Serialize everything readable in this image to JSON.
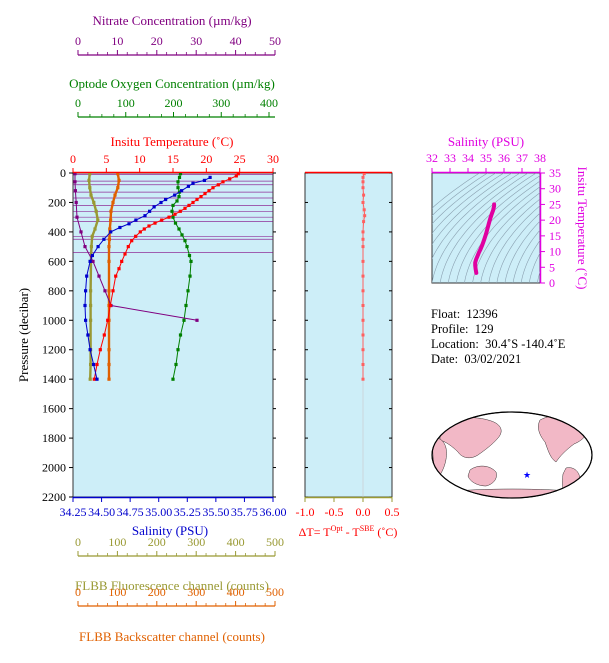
{
  "colors": {
    "nitrate": "#800080",
    "oxygen": "#008000",
    "temperature": "#ff0000",
    "salinity": "#0000cc",
    "fluorescence": "#999933",
    "backscatter": "#e06000",
    "ts_curve": "#e000a0",
    "magenta": "#e000e0",
    "delta": "#ff6060",
    "panel_bg": "#cdeef8",
    "land": "#f2b8c6"
  },
  "axes": {
    "nitrate": {
      "title": "Nitrate Concentration (µm/kg)",
      "ticks": [
        "0",
        "10",
        "20",
        "30",
        "40",
        "50"
      ],
      "range": [
        0,
        50
      ]
    },
    "oxygen": {
      "title": "Optode Oxygen Concentration (µm/kg)",
      "ticks": [
        "0",
        "100",
        "200",
        "300",
        "400"
      ],
      "range": [
        0,
        400
      ]
    },
    "temperature": {
      "title": "Insitu Temperature (˚C)",
      "ticks": [
        "0",
        "5",
        "10",
        "15",
        "20",
        "25",
        "30"
      ],
      "range": [
        0,
        30
      ]
    },
    "pressure": {
      "title": "Pressure (decibar)",
      "ticks": [
        "0",
        "200",
        "400",
        "600",
        "800",
        "1000",
        "1200",
        "1400",
        "1600",
        "1800",
        "2000",
        "2200"
      ],
      "range": [
        0,
        2200
      ]
    },
    "salinity": {
      "title": "Salinity (PSU)",
      "ticks": [
        "34.25",
        "34.50",
        "34.75",
        "35.00",
        "35.25",
        "35.50",
        "35.75",
        "36.00"
      ],
      "range": [
        34.25,
        36.0
      ]
    },
    "delta": {
      "title_prefix": "ΔT= T",
      "title_sup1": "Opt",
      "title_mid": " - T",
      "title_sup2": "SBE",
      "title_suffix": " (˚C)",
      "ticks": [
        "-1.0",
        "-0.5",
        "0.0",
        "0.5"
      ],
      "range": [
        -1.0,
        0.5
      ]
    },
    "fluorescence": {
      "title": "FLBB Fluorescence channel (counts)",
      "ticks": [
        "0",
        "100",
        "200",
        "300",
        "400",
        "500"
      ],
      "range": [
        0,
        500
      ]
    },
    "backscatter": {
      "title": "FLBB Backscatter channel (counts)",
      "ticks": [
        "0",
        "100",
        "200",
        "300",
        "400",
        "500"
      ],
      "range": [
        0,
        500
      ]
    },
    "ts_salinity": {
      "title": "Salinity (PSU)",
      "ticks": [
        "32",
        "33",
        "34",
        "35",
        "36",
        "37",
        "38"
      ],
      "range": [
        32,
        38
      ]
    },
    "ts_temperature": {
      "title": "Insitu Temperature (˚C)",
      "ticks": [
        "0",
        "5",
        "10",
        "15",
        "20",
        "25",
        "30",
        "35"
      ],
      "range": [
        0,
        35
      ]
    }
  },
  "info": {
    "float_label": "Float:",
    "float_value": "12396",
    "profile_label": "Profile:",
    "profile_value": "129",
    "location_label": "Location:",
    "location_value": "30.4˚S  -140.4˚E",
    "date_label": "Date:",
    "date_value": "03/02/2021"
  },
  "chart_data": [
    {
      "type": "line",
      "panel": "profiles",
      "y_axis": "Pressure (decibar)",
      "y_reversed": true,
      "ylim": [
        0,
        2200
      ],
      "series": [
        {
          "name": "Insitu Temperature",
          "axis": "temperature",
          "points": [
            [
              24.8,
              5
            ],
            [
              24.5,
              20
            ],
            [
              23.5,
              40
            ],
            [
              22.5,
              60
            ],
            [
              21.8,
              80
            ],
            [
              21.0,
              100
            ],
            [
              20.4,
              120
            ],
            [
              19.8,
              140
            ],
            [
              19.2,
              160
            ],
            [
              18.6,
              180
            ],
            [
              18.0,
              200
            ],
            [
              17.4,
              220
            ],
            [
              16.8,
              240
            ],
            [
              16.1,
              260
            ],
            [
              15.3,
              280
            ],
            [
              14.4,
              300
            ],
            [
              13.3,
              320
            ],
            [
              12.3,
              340
            ],
            [
              11.4,
              360
            ],
            [
              10.7,
              380
            ],
            [
              10.1,
              400
            ],
            [
              9.4,
              430
            ],
            [
              8.8,
              460
            ],
            [
              8.3,
              500
            ],
            [
              7.8,
              550
            ],
            [
              7.3,
              600
            ],
            [
              6.9,
              650
            ],
            [
              6.4,
              700
            ],
            [
              6.0,
              800
            ],
            [
              5.6,
              900
            ],
            [
              5.2,
              1000
            ],
            [
              4.7,
              1100
            ],
            [
              4.1,
              1200
            ],
            [
              3.6,
              1300
            ],
            [
              3.2,
              1400
            ]
          ]
        },
        {
          "name": "Salinity",
          "axis": "salinity",
          "points": [
            [
              35.45,
              30
            ],
            [
              35.4,
              50
            ],
            [
              35.3,
              70
            ],
            [
              35.26,
              90
            ],
            [
              35.2,
              120
            ],
            [
              35.14,
              150
            ],
            [
              35.06,
              180
            ],
            [
              35.02,
              200
            ],
            [
              34.96,
              230
            ],
            [
              34.92,
              260
            ],
            [
              34.88,
              290
            ],
            [
              34.8,
              320
            ],
            [
              34.74,
              345
            ],
            [
              34.66,
              370
            ],
            [
              34.58,
              400
            ],
            [
              34.52,
              450
            ],
            [
              34.47,
              500
            ],
            [
              34.42,
              560
            ],
            [
              34.4,
              600
            ],
            [
              34.37,
              700
            ],
            [
              34.36,
              800
            ],
            [
              34.355,
              900
            ],
            [
              34.36,
              1000
            ],
            [
              34.38,
              1100
            ],
            [
              34.4,
              1200
            ],
            [
              34.43,
              1300
            ],
            [
              34.46,
              1400
            ]
          ]
        },
        {
          "name": "Optode Oxygen Concentration",
          "axis": "oxygen",
          "points": [
            [
              215,
              5
            ],
            [
              213,
              30
            ],
            [
              210,
              60
            ],
            [
              210,
              100
            ],
            [
              213,
              130
            ],
            [
              212,
              160
            ],
            [
              208,
              190
            ],
            [
              200,
              220
            ],
            [
              198,
              260
            ],
            [
              200,
              300
            ],
            [
              205,
              340
            ],
            [
              212,
              380
            ],
            [
              218,
              420
            ],
            [
              224,
              460
            ],
            [
              228,
              500
            ],
            [
              233,
              560
            ],
            [
              236,
              600
            ],
            [
              234,
              700
            ],
            [
              230,
              800
            ],
            [
              226,
              900
            ],
            [
              222,
              1000
            ],
            [
              215,
              1100
            ],
            [
              210,
              1200
            ],
            [
              206,
              1300
            ],
            [
              200,
              1400
            ]
          ]
        },
        {
          "name": "Nitrate Concentration",
          "axis": "nitrate",
          "points": [
            [
              0.5,
              5
            ],
            [
              0.5,
              60
            ],
            [
              0.6,
              120
            ],
            [
              0.8,
              200
            ],
            [
              1.0,
              300
            ],
            [
              2.0,
              400
            ],
            [
              3.0,
              500
            ],
            [
              5.0,
              600
            ],
            [
              6.5,
              700
            ],
            [
              8.0,
              800
            ],
            [
              9.5,
              900
            ],
            [
              31.0,
              1000
            ]
          ]
        },
        {
          "name": "FLBB Fluorescence channel",
          "axis": "fluorescence",
          "points": [
            [
              42,
              5
            ],
            [
              40,
              50
            ],
            [
              42,
              100
            ],
            [
              45,
              150
            ],
            [
              52,
              200
            ],
            [
              58,
              260
            ],
            [
              62,
              320
            ],
            [
              55,
              380
            ],
            [
              48,
              430
            ],
            [
              46,
              500
            ],
            [
              45,
              600
            ],
            [
              44,
              800
            ],
            [
              44,
              900
            ],
            [
              44,
              1000
            ],
            [
              44,
              1200
            ],
            [
              44,
              1300
            ],
            [
              43,
              1400
            ]
          ]
        },
        {
          "name": "FLBB Backscatter channel",
          "axis": "backscatter",
          "points": [
            [
              112,
              5
            ],
            [
              115,
              50
            ],
            [
              112,
              100
            ],
            [
              105,
              150
            ],
            [
              100,
              200
            ],
            [
              95,
              260
            ],
            [
              94,
              320
            ],
            [
              92,
              380
            ],
            [
              91,
              450
            ],
            [
              90,
              500
            ],
            [
              90,
              600
            ],
            [
              90,
              800
            ],
            [
              90,
              900
            ],
            [
              90,
              1000
            ],
            [
              90,
              1200
            ],
            [
              90,
              1300
            ],
            [
              90,
              1400
            ]
          ]
        }
      ],
      "horizontal_markers": [
        10,
        55,
        80,
        130,
        170,
        220,
        260,
        300,
        330,
        430,
        450,
        540
      ]
    },
    {
      "type": "scatter",
      "panel": "delta_temperature",
      "x_axis": "ΔT (˚C)",
      "xlim": [
        -1.0,
        0.5
      ],
      "ylim": [
        0,
        2200
      ],
      "points": [
        [
          0.02,
          5
        ],
        [
          0.0,
          30
        ],
        [
          0.0,
          60
        ],
        [
          0.0,
          100
        ],
        [
          0.01,
          150
        ],
        [
          0.0,
          200
        ],
        [
          0.02,
          250
        ],
        [
          0.03,
          290
        ],
        [
          0.01,
          330
        ],
        [
          0.0,
          400
        ],
        [
          0.0,
          450
        ],
        [
          0.0,
          500
        ],
        [
          0.0,
          600
        ],
        [
          0.0,
          700
        ],
        [
          0.0,
          800
        ],
        [
          0.0,
          900
        ],
        [
          0.0,
          1000
        ],
        [
          0.0,
          1100
        ],
        [
          0.0,
          1200
        ],
        [
          0.0,
          1300
        ],
        [
          0.0,
          1400
        ]
      ]
    },
    {
      "type": "line",
      "panel": "ts_diagram",
      "x_axis": "Salinity (PSU)",
      "y_axis": "Insitu Temperature (˚C)",
      "xlim": [
        32,
        38
      ],
      "ylim": [
        0,
        35
      ],
      "points": [
        [
          34.46,
          3.2
        ],
        [
          34.42,
          4.5
        ],
        [
          34.4,
          5.6
        ],
        [
          34.4,
          6.5
        ],
        [
          34.45,
          7.5
        ],
        [
          34.52,
          8.5
        ],
        [
          34.6,
          9.6
        ],
        [
          34.7,
          10.8
        ],
        [
          34.8,
          12.2
        ],
        [
          34.9,
          13.8
        ],
        [
          35.0,
          15.6
        ],
        [
          35.08,
          17.2
        ],
        [
          35.16,
          19.0
        ],
        [
          35.24,
          20.6
        ],
        [
          35.32,
          22.0
        ],
        [
          35.4,
          23.2
        ],
        [
          35.45,
          24.5
        ],
        [
          35.45,
          25.0
        ]
      ]
    }
  ]
}
